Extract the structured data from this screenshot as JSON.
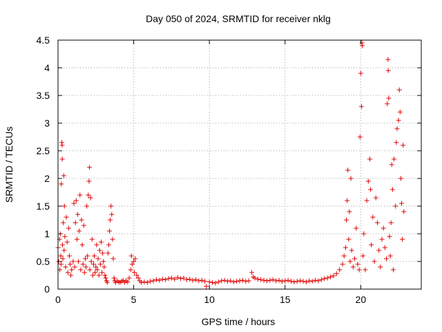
{
  "chart_data": {
    "type": "scatter",
    "title": "Day 050 of 2024, SRMTID for receiver nklg",
    "xlabel": "GPS time / hours",
    "ylabel": "SRMTID / TECUs",
    "xlim": [
      0,
      24
    ],
    "ylim": [
      0,
      4.5
    ],
    "xticks": [
      0,
      5,
      10,
      15,
      20
    ],
    "xtick_labels": [
      "0",
      "5",
      "10",
      "15",
      "20"
    ],
    "yticks": [
      0,
      0.5,
      1,
      1.5,
      2,
      2.5,
      3,
      3.5,
      4,
      4.5
    ],
    "ytick_labels": [
      "0",
      "0.5",
      "1",
      "1.5",
      "2",
      "2.5",
      "3",
      "3.5",
      "4",
      "4.5"
    ],
    "grid": true,
    "marker": "plus",
    "series": [
      {
        "name": "SRMTID",
        "color": "#e00000",
        "points": [
          [
            0.0,
            0.75
          ],
          [
            0.05,
            0.5
          ],
          [
            0.1,
            0.9
          ],
          [
            0.12,
            0.35
          ],
          [
            0.15,
            1.0
          ],
          [
            0.18,
            0.6
          ],
          [
            0.2,
            0.45
          ],
          [
            0.22,
            1.9
          ],
          [
            0.25,
            2.65
          ],
          [
            0.27,
            2.6
          ],
          [
            0.28,
            2.35
          ],
          [
            0.3,
            0.8
          ],
          [
            0.32,
            0.55
          ],
          [
            0.35,
            1.2
          ],
          [
            0.38,
            2.05
          ],
          [
            0.4,
            0.7
          ],
          [
            0.42,
            1.5
          ],
          [
            0.45,
            0.95
          ],
          [
            0.5,
            0.4
          ],
          [
            0.55,
            1.3
          ],
          [
            0.6,
            0.85
          ],
          [
            0.65,
            0.3
          ],
          [
            0.7,
            1.1
          ],
          [
            0.75,
            0.6
          ],
          [
            0.8,
            0.45
          ],
          [
            0.85,
            0.25
          ],
          [
            0.9,
            0.35
          ],
          [
            1.0,
            0.5
          ],
          [
            1.05,
            1.55
          ],
          [
            1.1,
            0.4
          ],
          [
            1.15,
            1.2
          ],
          [
            1.2,
            1.6
          ],
          [
            1.25,
            0.9
          ],
          [
            1.3,
            1.35
          ],
          [
            1.35,
            0.5
          ],
          [
            1.4,
            1.05
          ],
          [
            1.45,
            1.7
          ],
          [
            1.5,
            0.35
          ],
          [
            1.55,
            1.25
          ],
          [
            1.6,
            0.8
          ],
          [
            1.65,
            0.45
          ],
          [
            1.7,
            1.15
          ],
          [
            1.75,
            0.3
          ],
          [
            1.8,
            0.55
          ],
          [
            1.85,
            0.4
          ],
          [
            1.9,
            1.5
          ],
          [
            1.95,
            0.6
          ],
          [
            2.0,
            1.7
          ],
          [
            2.05,
            1.95
          ],
          [
            2.08,
            2.2
          ],
          [
            2.1,
            0.35
          ],
          [
            2.15,
            1.65
          ],
          [
            2.2,
            0.5
          ],
          [
            2.25,
            0.9
          ],
          [
            2.3,
            0.25
          ],
          [
            2.35,
            0.45
          ],
          [
            2.4,
            0.6
          ],
          [
            2.45,
            0.3
          ],
          [
            2.5,
            0.4
          ],
          [
            2.55,
            0.8
          ],
          [
            2.6,
            0.35
          ],
          [
            2.65,
            0.55
          ],
          [
            2.7,
            0.25
          ],
          [
            2.75,
            0.7
          ],
          [
            2.8,
            0.45
          ],
          [
            2.85,
            0.85
          ],
          [
            2.9,
            0.3
          ],
          [
            2.95,
            0.65
          ],
          [
            3.0,
            0.5
          ],
          [
            3.05,
            0.4
          ],
          [
            3.1,
            0.25
          ],
          [
            3.15,
            0.2
          ],
          [
            3.2,
            0.15
          ],
          [
            3.25,
            0.12
          ],
          [
            3.3,
            0.65
          ],
          [
            3.35,
            0.8
          ],
          [
            3.4,
            1.05
          ],
          [
            3.45,
            1.25
          ],
          [
            3.5,
            1.5
          ],
          [
            3.55,
            1.35
          ],
          [
            3.6,
            0.9
          ],
          [
            3.65,
            0.55
          ],
          [
            3.7,
            0.2
          ],
          [
            3.75,
            0.15
          ],
          [
            3.8,
            0.12
          ],
          [
            3.9,
            0.15
          ],
          [
            4.0,
            0.13
          ],
          [
            4.1,
            0.12
          ],
          [
            4.2,
            0.14
          ],
          [
            4.3,
            0.16
          ],
          [
            4.4,
            0.12
          ],
          [
            4.5,
            0.15
          ],
          [
            4.6,
            0.13
          ],
          [
            4.7,
            0.2
          ],
          [
            4.8,
            0.35
          ],
          [
            4.85,
            0.6
          ],
          [
            4.9,
            0.45
          ],
          [
            5.0,
            0.5
          ],
          [
            5.05,
            0.3
          ],
          [
            5.1,
            0.55
          ],
          [
            5.2,
            0.25
          ],
          [
            5.3,
            0.2
          ],
          [
            5.4,
            0.15
          ],
          [
            5.5,
            0.12
          ],
          [
            5.7,
            0.13
          ],
          [
            5.9,
            0.12
          ],
          [
            6.1,
            0.14
          ],
          [
            6.3,
            0.15
          ],
          [
            6.5,
            0.17
          ],
          [
            6.7,
            0.16
          ],
          [
            6.9,
            0.18
          ],
          [
            7.1,
            0.17
          ],
          [
            7.3,
            0.19
          ],
          [
            7.5,
            0.2
          ],
          [
            7.7,
            0.18
          ],
          [
            7.9,
            0.21
          ],
          [
            8.1,
            0.19
          ],
          [
            8.3,
            0.2
          ],
          [
            8.5,
            0.17
          ],
          [
            8.7,
            0.18
          ],
          [
            8.9,
            0.16
          ],
          [
            9.1,
            0.17
          ],
          [
            9.3,
            0.15
          ],
          [
            9.5,
            0.16
          ],
          [
            9.7,
            0.14
          ],
          [
            9.8,
            0.05
          ],
          [
            10.0,
            0.13
          ],
          [
            10.2,
            0.12
          ],
          [
            10.4,
            0.11
          ],
          [
            10.6,
            0.13
          ],
          [
            10.8,
            0.15
          ],
          [
            11.0,
            0.16
          ],
          [
            11.2,
            0.14
          ],
          [
            11.4,
            0.15
          ],
          [
            11.6,
            0.13
          ],
          [
            11.8,
            0.14
          ],
          [
            12.0,
            0.15
          ],
          [
            12.2,
            0.16
          ],
          [
            12.4,
            0.14
          ],
          [
            12.6,
            0.15
          ],
          [
            12.8,
            0.3
          ],
          [
            12.9,
            0.22
          ],
          [
            13.0,
            0.2
          ],
          [
            13.2,
            0.18
          ],
          [
            13.4,
            0.17
          ],
          [
            13.6,
            0.16
          ],
          [
            13.8,
            0.15
          ],
          [
            14.0,
            0.16
          ],
          [
            14.2,
            0.17
          ],
          [
            14.4,
            0.15
          ],
          [
            14.6,
            0.16
          ],
          [
            14.8,
            0.14
          ],
          [
            15.0,
            0.15
          ],
          [
            15.2,
            0.16
          ],
          [
            15.4,
            0.14
          ],
          [
            15.6,
            0.13
          ],
          [
            15.8,
            0.14
          ],
          [
            16.0,
            0.15
          ],
          [
            16.2,
            0.14
          ],
          [
            16.4,
            0.13
          ],
          [
            16.6,
            0.15
          ],
          [
            16.8,
            0.14
          ],
          [
            17.0,
            0.16
          ],
          [
            17.2,
            0.15
          ],
          [
            17.4,
            0.17
          ],
          [
            17.6,
            0.19
          ],
          [
            17.8,
            0.2
          ],
          [
            18.0,
            0.22
          ],
          [
            18.2,
            0.24
          ],
          [
            18.4,
            0.28
          ],
          [
            18.6,
            0.35
          ],
          [
            18.8,
            0.45
          ],
          [
            18.9,
            0.6
          ],
          [
            19.0,
            0.75
          ],
          [
            19.05,
            1.25
          ],
          [
            19.1,
            1.6
          ],
          [
            19.15,
            2.15
          ],
          [
            19.2,
            0.9
          ],
          [
            19.25,
            1.4
          ],
          [
            19.3,
            0.5
          ],
          [
            19.35,
            2.0
          ],
          [
            19.4,
            0.7
          ],
          [
            19.5,
            0.4
          ],
          [
            19.6,
            0.55
          ],
          [
            19.7,
            1.1
          ],
          [
            19.8,
            0.45
          ],
          [
            19.9,
            0.35
          ],
          [
            19.95,
            2.75
          ],
          [
            20.0,
            3.9
          ],
          [
            20.05,
            3.3
          ],
          [
            20.08,
            4.45
          ],
          [
            20.1,
            4.4
          ],
          [
            20.15,
            0.6
          ],
          [
            20.2,
            1.0
          ],
          [
            20.3,
            0.35
          ],
          [
            20.4,
            1.6
          ],
          [
            20.5,
            1.95
          ],
          [
            20.6,
            2.35
          ],
          [
            20.65,
            1.8
          ],
          [
            20.7,
            0.8
          ],
          [
            20.8,
            1.3
          ],
          [
            20.9,
            0.5
          ],
          [
            21.0,
            1.65
          ],
          [
            21.1,
            1.2
          ],
          [
            21.2,
            0.7
          ],
          [
            21.3,
            0.4
          ],
          [
            21.4,
            0.9
          ],
          [
            21.5,
            1.1
          ],
          [
            21.6,
            0.75
          ],
          [
            21.7,
            0.55
          ],
          [
            21.75,
            3.35
          ],
          [
            21.8,
            4.15
          ],
          [
            21.82,
            3.95
          ],
          [
            21.85,
            3.45
          ],
          [
            21.9,
            0.95
          ],
          [
            21.95,
            0.6
          ],
          [
            22.0,
            1.2
          ],
          [
            22.05,
            2.25
          ],
          [
            22.1,
            1.8
          ],
          [
            22.15,
            0.35
          ],
          [
            22.2,
            2.35
          ],
          [
            22.3,
            1.5
          ],
          [
            22.35,
            2.65
          ],
          [
            22.4,
            2.9
          ],
          [
            22.5,
            3.05
          ],
          [
            22.55,
            3.6
          ],
          [
            22.6,
            3.2
          ],
          [
            22.65,
            2.0
          ],
          [
            22.7,
            1.55
          ],
          [
            22.75,
            0.9
          ],
          [
            22.8,
            2.6
          ],
          [
            22.85,
            1.4
          ]
        ]
      }
    ]
  }
}
